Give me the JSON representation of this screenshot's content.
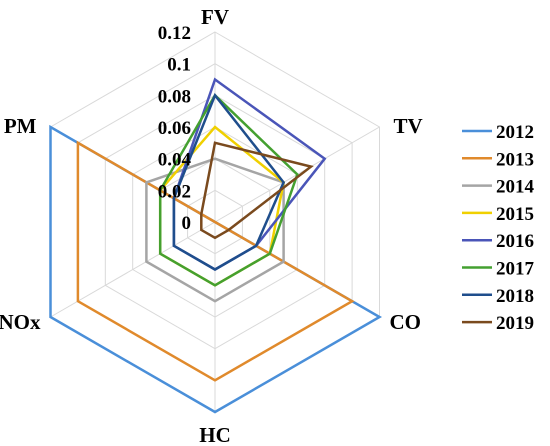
{
  "chart_data": {
    "type": "radar",
    "axes": [
      "FV",
      "TV",
      "CO",
      "HC",
      "NOx",
      "PM"
    ],
    "ticks": [
      "0",
      "0.02",
      "0.04",
      "0.06",
      "0.08",
      "0.1",
      "0.12"
    ],
    "range": [
      0,
      0.12
    ],
    "grid": true,
    "legend_position": "right",
    "series": [
      {
        "name": "2012",
        "color": "#4a8fd9",
        "values": [
          0.0,
          0.0,
          0.12,
          0.12,
          0.12,
          0.12
        ]
      },
      {
        "name": "2013",
        "color": "#e08a2c",
        "values": [
          0.0,
          0.0,
          0.1,
          0.1,
          0.1,
          0.1
        ]
      },
      {
        "name": "2014",
        "color": "#a5a5a5",
        "values": [
          0.04,
          0.05,
          0.05,
          0.05,
          0.05,
          0.05
        ]
      },
      {
        "name": "2015",
        "color": "#f0d000",
        "values": [
          0.06,
          0.05,
          0.04,
          0.04,
          0.04,
          0.04
        ]
      },
      {
        "name": "2016",
        "color": "#4a55b8",
        "values": [
          0.09,
          0.08,
          0.03,
          0.03,
          0.03,
          0.03
        ]
      },
      {
        "name": "2017",
        "color": "#44a030",
        "values": [
          0.08,
          0.06,
          0.04,
          0.04,
          0.04,
          0.04
        ]
      },
      {
        "name": "2018",
        "color": "#1f4e8c",
        "values": [
          0.08,
          0.05,
          0.03,
          0.03,
          0.03,
          0.03
        ]
      },
      {
        "name": "2019",
        "color": "#7a4a1e",
        "values": [
          0.05,
          0.07,
          0.01,
          0.01,
          0.01,
          0.01
        ]
      }
    ]
  }
}
